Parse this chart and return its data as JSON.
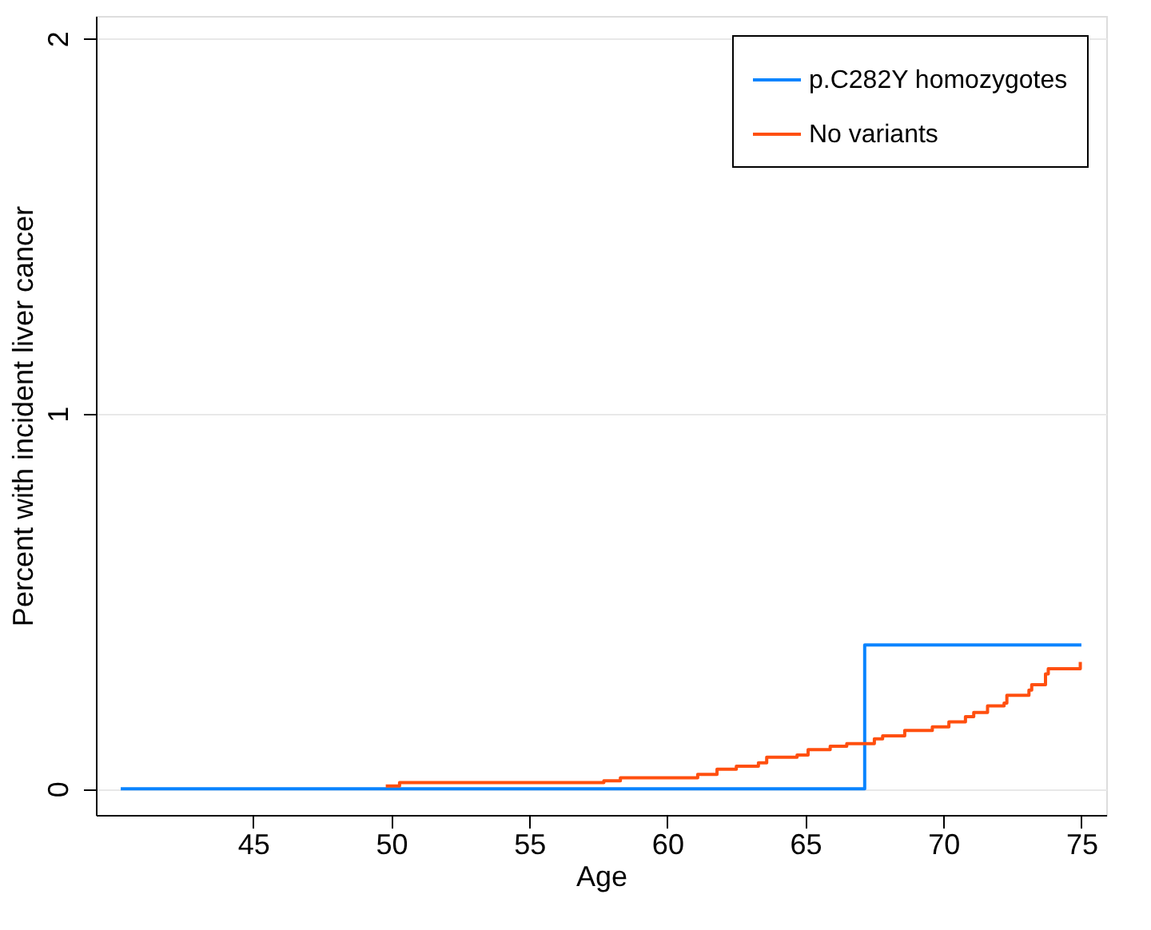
{
  "chart_data": {
    "type": "step",
    "xlabel": "Age",
    "ylabel": "Percent with incident liver cancer",
    "xlim": [
      39.3,
      75.9
    ],
    "ylim": [
      -0.07,
      2.06
    ],
    "xticks": [
      45,
      50,
      55,
      60,
      65,
      70,
      75
    ],
    "yticks": [
      0,
      1,
      2
    ],
    "grid": "y",
    "legend": "top right",
    "line_style": "solid",
    "series": [
      {
        "name": "p.C282Y homozygotes",
        "color": "#0a84ff",
        "x": [
          40.2,
          67.15,
          75
        ],
        "values": [
          0,
          0.383,
          0.383
        ]
      },
      {
        "name": "No variants",
        "color": "#ff4f0f",
        "x": [
          49.8,
          50.3,
          57.7,
          58.3,
          61.1,
          61.8,
          62.5,
          63.3,
          63.6,
          64.7,
          65.1,
          65.9,
          66.5,
          67.5,
          67.8,
          68.6,
          69.6,
          70.2,
          70.8,
          71.1,
          71.6,
          72.2,
          72.3,
          73.1,
          73.2,
          73.7,
          73.8,
          74.96
        ],
        "values": [
          0.007,
          0.016,
          0.021,
          0.029,
          0.038,
          0.052,
          0.06,
          0.069,
          0.084,
          0.09,
          0.104,
          0.113,
          0.12,
          0.133,
          0.141,
          0.155,
          0.165,
          0.178,
          0.192,
          0.203,
          0.221,
          0.228,
          0.249,
          0.263,
          0.277,
          0.306,
          0.32,
          0.338
        ]
      }
    ]
  }
}
